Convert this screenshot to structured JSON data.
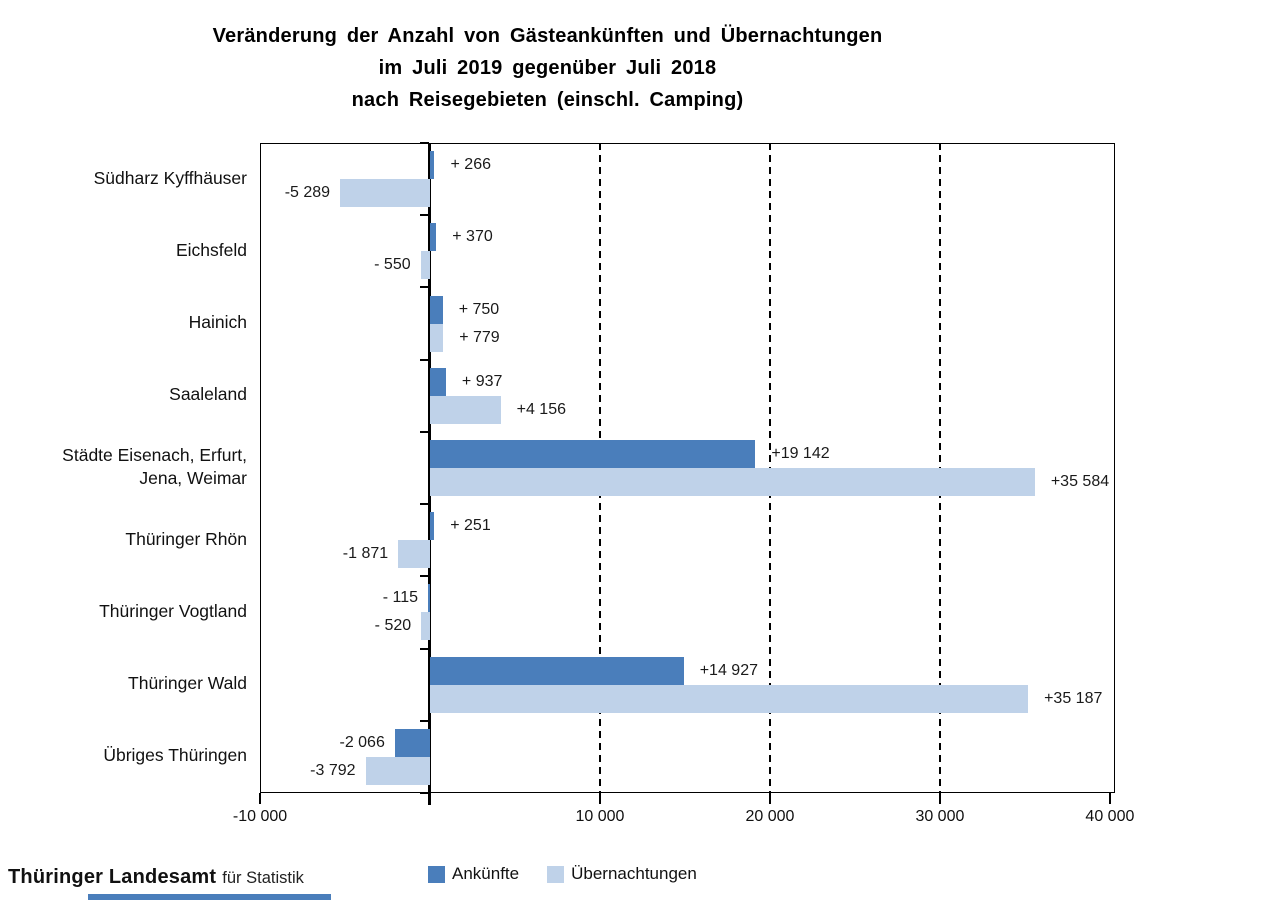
{
  "title": {
    "line1": "Veränderung der Anzahl von Gästeankünften und Übernachtungen",
    "line2": "im Juli 2019 gegenüber Juli 2018",
    "line3": "nach Reisegebieten (einschl. Camping)"
  },
  "footer": {
    "org_main": "Thüringer Landesamt",
    "org_sub": "für Statistik"
  },
  "legend": {
    "items": [
      {
        "label": "Ankünfte",
        "color": "#4a7ebb"
      },
      {
        "label": "Übernachtungen",
        "color": "#bfd2e9"
      }
    ]
  },
  "colors": {
    "ankuenfte": "#4a7ebb",
    "uebernachtungen": "#bfd2e9",
    "axis": "#000000",
    "logo_bar": "#4a7ebb"
  },
  "chart_data": {
    "type": "bar",
    "orientation": "horizontal",
    "title": "Veränderung der Anzahl von Gästeankünften und Übernachtungen im Juli 2019 gegenüber Juli 2018 nach Reisegebieten (einschl. Camping)",
    "categories": [
      "Südharz Kyffhäuser",
      "Eichsfeld",
      "Hainich",
      "Saaleland",
      "Städte Eisenach, Erfurt,\nJena, Weimar",
      "Thüringer Rhön",
      "Thüringer Vogtland",
      "Thüringer Wald",
      "Übriges Thüringen"
    ],
    "series": [
      {
        "name": "Ankünfte",
        "color": "#4a7ebb",
        "values": [
          266,
          370,
          750,
          937,
          19142,
          251,
          -115,
          14927,
          -2066
        ],
        "labels": [
          "+ 266",
          "+ 370",
          "+ 750",
          "+ 937",
          "+19 142",
          "+ 251",
          "- 115",
          "+14 927",
          "-2 066"
        ]
      },
      {
        "name": "Übernachtungen",
        "color": "#bfd2e9",
        "values": [
          -5289,
          -550,
          779,
          4156,
          35584,
          -1871,
          -520,
          35187,
          -3792
        ],
        "labels": [
          "-5 289",
          "- 550",
          "+ 779",
          "+4 156",
          "+35 584",
          "-1 871",
          "- 520",
          "+35 187",
          "-3 792"
        ]
      }
    ],
    "xlim": [
      -10000,
      40300
    ],
    "x_ticks": [
      -10000,
      0,
      10000,
      20000,
      30000,
      40000
    ],
    "x_tick_labels": [
      "-10 000",
      "",
      "10 000",
      "20 000",
      "30 000",
      "40 000"
    ],
    "gridlines_dashed_at": [
      10000,
      20000,
      30000
    ],
    "zero_line": true,
    "legend_position": "bottom"
  }
}
